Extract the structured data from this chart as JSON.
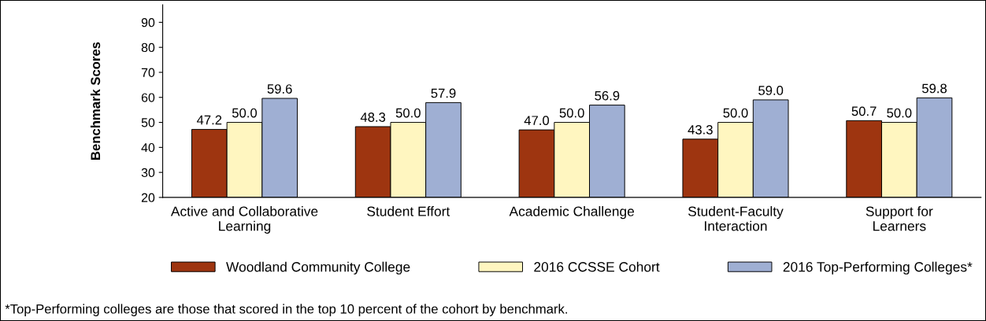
{
  "chart_data": {
    "type": "bar",
    "ylabel": "Benchmark Scores",
    "categories": [
      "Active and Collaborative\nLearning",
      "Student Effort",
      "Academic Challenge",
      "Student-Faculty\nInteraction",
      "Support for\nLearners"
    ],
    "series": [
      {
        "name": "Woodland Community College",
        "color": "#9e3510",
        "values": [
          47.2,
          48.3,
          47.0,
          43.3,
          50.7
        ],
        "value_labels": [
          "47.2",
          "48.3",
          "47.0",
          "43.3",
          "50.7"
        ]
      },
      {
        "name": "2016 CCSSE Cohort",
        "color": "#fff6c0",
        "values": [
          50.0,
          50.0,
          50.0,
          50.0,
          50.0
        ],
        "value_labels": [
          "50.0",
          "50.0",
          "50.0",
          "50.0",
          "50.0"
        ]
      },
      {
        "name": "2016 Top-Performing Colleges*",
        "color": "#9fafd3",
        "values": [
          59.6,
          57.9,
          56.9,
          59.0,
          59.8
        ],
        "value_labels": [
          "59.6",
          "57.9",
          "56.9",
          "59.0",
          "59.8"
        ]
      }
    ],
    "ylim": [
      20,
      97
    ],
    "yticks": [
      20,
      30,
      40,
      50,
      60,
      70,
      80,
      90
    ],
    "grid": false,
    "legend": "bottom",
    "annotations": [
      "*Top-Performing colleges are those that scored in the top 10 percent of the cohort by benchmark."
    ]
  }
}
